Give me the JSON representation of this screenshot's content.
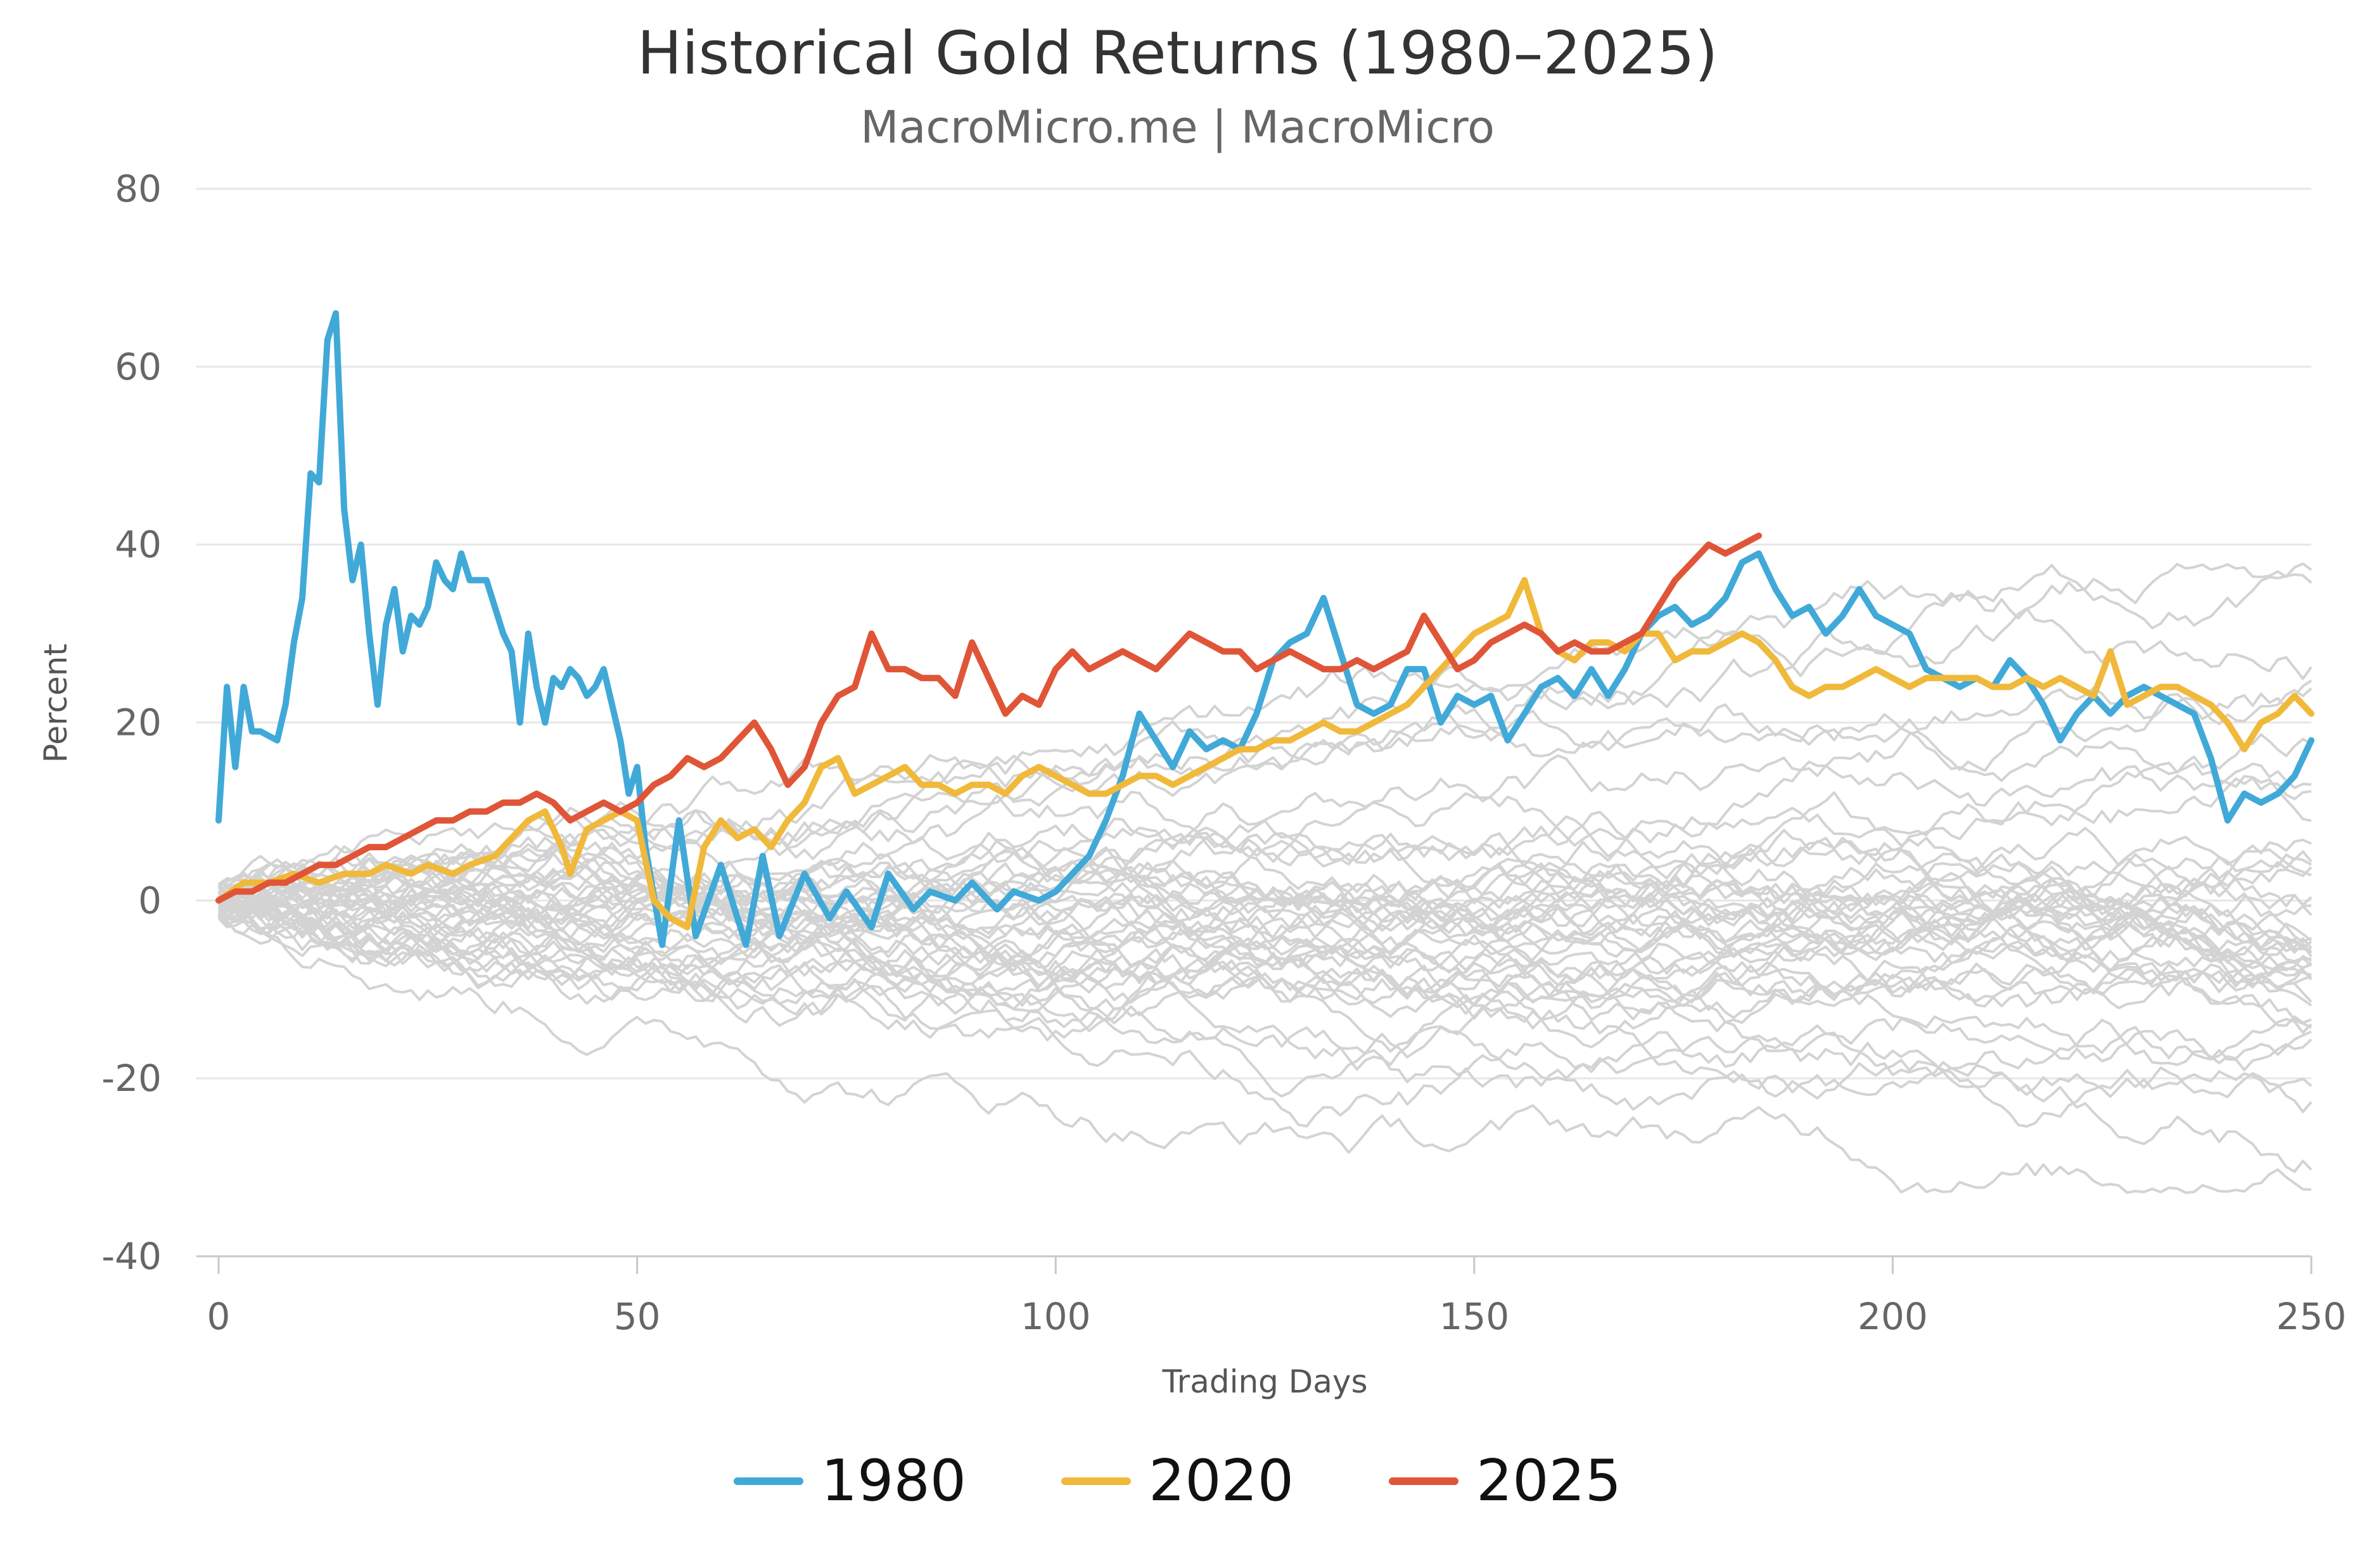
{
  "chart_data": {
    "type": "line",
    "title": "Historical Gold Returns (1980–2025)",
    "subtitle": "MacroMicro.me | MacroMicro",
    "xlabel": "Trading Days",
    "ylabel": "Percent",
    "xlim": [
      0,
      250
    ],
    "ylim": [
      -40,
      80
    ],
    "x_ticks": [
      0,
      50,
      100,
      150,
      200,
      250
    ],
    "y_ticks": [
      80,
      60,
      40,
      20,
      0,
      -20,
      -40
    ],
    "grid": "horizontal",
    "legend_position": "bottom-center",
    "background_color": "#d3d3d3",
    "series": [
      {
        "name": "1980",
        "color": "#41a9d8",
        "x": [
          0,
          1,
          2,
          3,
          4,
          5,
          7,
          8,
          9,
          10,
          11,
          12,
          13,
          14,
          15,
          16,
          17,
          18,
          19,
          20,
          21,
          22,
          23,
          24,
          25,
          26,
          27,
          28,
          29,
          30,
          32,
          33,
          34,
          35,
          36,
          37,
          38,
          39,
          40,
          41,
          42,
          43,
          44,
          45,
          46,
          47,
          48,
          49,
          50,
          51,
          53,
          55,
          57,
          60,
          63,
          65,
          67,
          70,
          73,
          75,
          78,
          80,
          83,
          85,
          88,
          90,
          93,
          95,
          98,
          100,
          102,
          104,
          106,
          108,
          110,
          112,
          114,
          116,
          118,
          120,
          122,
          124,
          126,
          128,
          130,
          132,
          134,
          136,
          138,
          140,
          142,
          144,
          146,
          148,
          150,
          152,
          154,
          156,
          158,
          160,
          162,
          164,
          166,
          168,
          170,
          172,
          174,
          176,
          178,
          180,
          182,
          184,
          186,
          188,
          190,
          192,
          194,
          196,
          198,
          200,
          202,
          204,
          206,
          208,
          210,
          212,
          214,
          216,
          218,
          220,
          222,
          224,
          226,
          228,
          230,
          232,
          234,
          236,
          238,
          240,
          242,
          244,
          246,
          248,
          250
        ],
        "values": [
          9,
          24,
          15,
          24,
          19,
          19,
          18,
          22,
          29,
          34,
          48,
          47,
          63,
          66,
          44,
          36,
          40,
          30,
          22,
          31,
          35,
          28,
          32,
          31,
          33,
          38,
          36,
          35,
          39,
          36,
          36,
          33,
          30,
          28,
          20,
          30,
          24,
          20,
          25,
          24,
          26,
          25,
          23,
          24,
          26,
          22,
          18,
          12,
          15,
          6,
          -5,
          9,
          -4,
          4,
          -5,
          5,
          -4,
          3,
          -2,
          1,
          -3,
          3,
          -1,
          1,
          0,
          2,
          -1,
          1,
          0,
          1,
          3,
          5,
          9,
          14,
          21,
          18,
          15,
          19,
          17,
          18,
          17,
          21,
          27,
          29,
          30,
          34,
          28,
          22,
          21,
          22,
          26,
          26,
          20,
          23,
          22,
          23,
          18,
          21,
          24,
          25,
          23,
          26,
          23,
          26,
          30,
          32,
          33,
          31,
          32,
          34,
          38,
          39,
          35,
          32,
          33,
          30,
          32,
          35,
          32,
          31,
          30,
          26,
          25,
          24,
          25,
          24,
          27,
          25,
          22,
          18,
          21,
          23,
          21,
          23,
          24,
          23,
          22,
          21,
          16,
          9,
          12,
          11,
          12,
          14,
          18
        ]
      },
      {
        "name": "2020",
        "color": "#f0b93b",
        "x": [
          0,
          3,
          6,
          9,
          12,
          15,
          18,
          20,
          23,
          25,
          28,
          30,
          33,
          35,
          37,
          39,
          40,
          41,
          42,
          44,
          46,
          48,
          50,
          52,
          54,
          56,
          58,
          60,
          62,
          64,
          66,
          68,
          70,
          72,
          74,
          76,
          78,
          80,
          82,
          84,
          86,
          88,
          90,
          92,
          94,
          96,
          98,
          100,
          102,
          104,
          106,
          108,
          110,
          112,
          114,
          116,
          118,
          120,
          122,
          124,
          126,
          128,
          130,
          132,
          134,
          136,
          138,
          140,
          142,
          144,
          146,
          148,
          150,
          152,
          154,
          156,
          158,
          160,
          162,
          164,
          166,
          168,
          170,
          172,
          174,
          176,
          178,
          180,
          182,
          184,
          186,
          188,
          190,
          192,
          194,
          196,
          198,
          200,
          202,
          204,
          206,
          208,
          210,
          212,
          214,
          216,
          218,
          220,
          222,
          224,
          226,
          228,
          230,
          232,
          234,
          236,
          238,
          240,
          242,
          244,
          246,
          248,
          250
        ],
        "values": [
          0,
          2,
          2,
          3,
          2,
          3,
          3,
          4,
          3,
          4,
          3,
          4,
          5,
          7,
          9,
          10,
          8,
          6,
          3,
          8,
          9,
          10,
          9,
          0,
          -2,
          -3,
          6,
          9,
          7,
          8,
          6,
          9,
          11,
          15,
          16,
          12,
          13,
          14,
          15,
          13,
          13,
          12,
          13,
          13,
          12,
          14,
          15,
          14,
          13,
          12,
          12,
          13,
          14,
          14,
          13,
          14,
          15,
          16,
          17,
          17,
          18,
          18,
          19,
          20,
          19,
          19,
          20,
          21,
          22,
          24,
          26,
          28,
          30,
          31,
          32,
          36,
          30,
          28,
          27,
          29,
          29,
          28,
          30,
          30,
          27,
          28,
          28,
          29,
          30,
          29,
          27,
          24,
          23,
          24,
          24,
          25,
          26,
          25,
          24,
          25,
          25,
          25,
          25,
          24,
          24,
          25,
          24,
          25,
          24,
          23,
          28,
          22,
          23,
          24,
          24,
          23,
          22,
          20,
          17,
          20,
          21,
          23,
          21
        ]
      },
      {
        "name": "2025",
        "color": "#e05538",
        "x": [
          0,
          2,
          4,
          6,
          8,
          10,
          12,
          14,
          16,
          18,
          20,
          22,
          24,
          26,
          28,
          30,
          32,
          34,
          36,
          38,
          40,
          42,
          44,
          46,
          48,
          50,
          52,
          54,
          56,
          58,
          60,
          62,
          64,
          66,
          68,
          70,
          72,
          74,
          76,
          78,
          80,
          82,
          84,
          86,
          88,
          90,
          92,
          94,
          96,
          98,
          100,
          102,
          104,
          106,
          108,
          110,
          112,
          114,
          116,
          118,
          120,
          122,
          124,
          126,
          128,
          130,
          132,
          134,
          136,
          138,
          140,
          142,
          144,
          146,
          148,
          150,
          152,
          154,
          156,
          158,
          160,
          162,
          164,
          166,
          168,
          170,
          172,
          174,
          176,
          178,
          180,
          182,
          184
        ],
        "values": [
          0,
          1,
          1,
          2,
          2,
          3,
          4,
          4,
          5,
          6,
          6,
          7,
          8,
          9,
          9,
          10,
          10,
          11,
          11,
          12,
          11,
          9,
          10,
          11,
          10,
          11,
          13,
          14,
          16,
          15,
          16,
          18,
          20,
          17,
          13,
          15,
          20,
          23,
          24,
          30,
          26,
          26,
          25,
          25,
          23,
          29,
          25,
          21,
          23,
          22,
          26,
          28,
          26,
          27,
          28,
          27,
          26,
          28,
          30,
          29,
          28,
          28,
          26,
          27,
          28,
          27,
          26,
          26,
          27,
          26,
          27,
          28,
          32,
          29,
          26,
          27,
          29,
          30,
          31,
          30,
          28,
          29,
          28,
          28,
          29,
          30,
          33,
          36,
          38,
          40,
          39,
          40,
          41
        ]
      }
    ]
  },
  "legend": {
    "items": [
      {
        "label": "1980",
        "color": "#41a9d8"
      },
      {
        "label": "2020",
        "color": "#f0b93b"
      },
      {
        "label": "2025",
        "color": "#e05538"
      }
    ]
  }
}
